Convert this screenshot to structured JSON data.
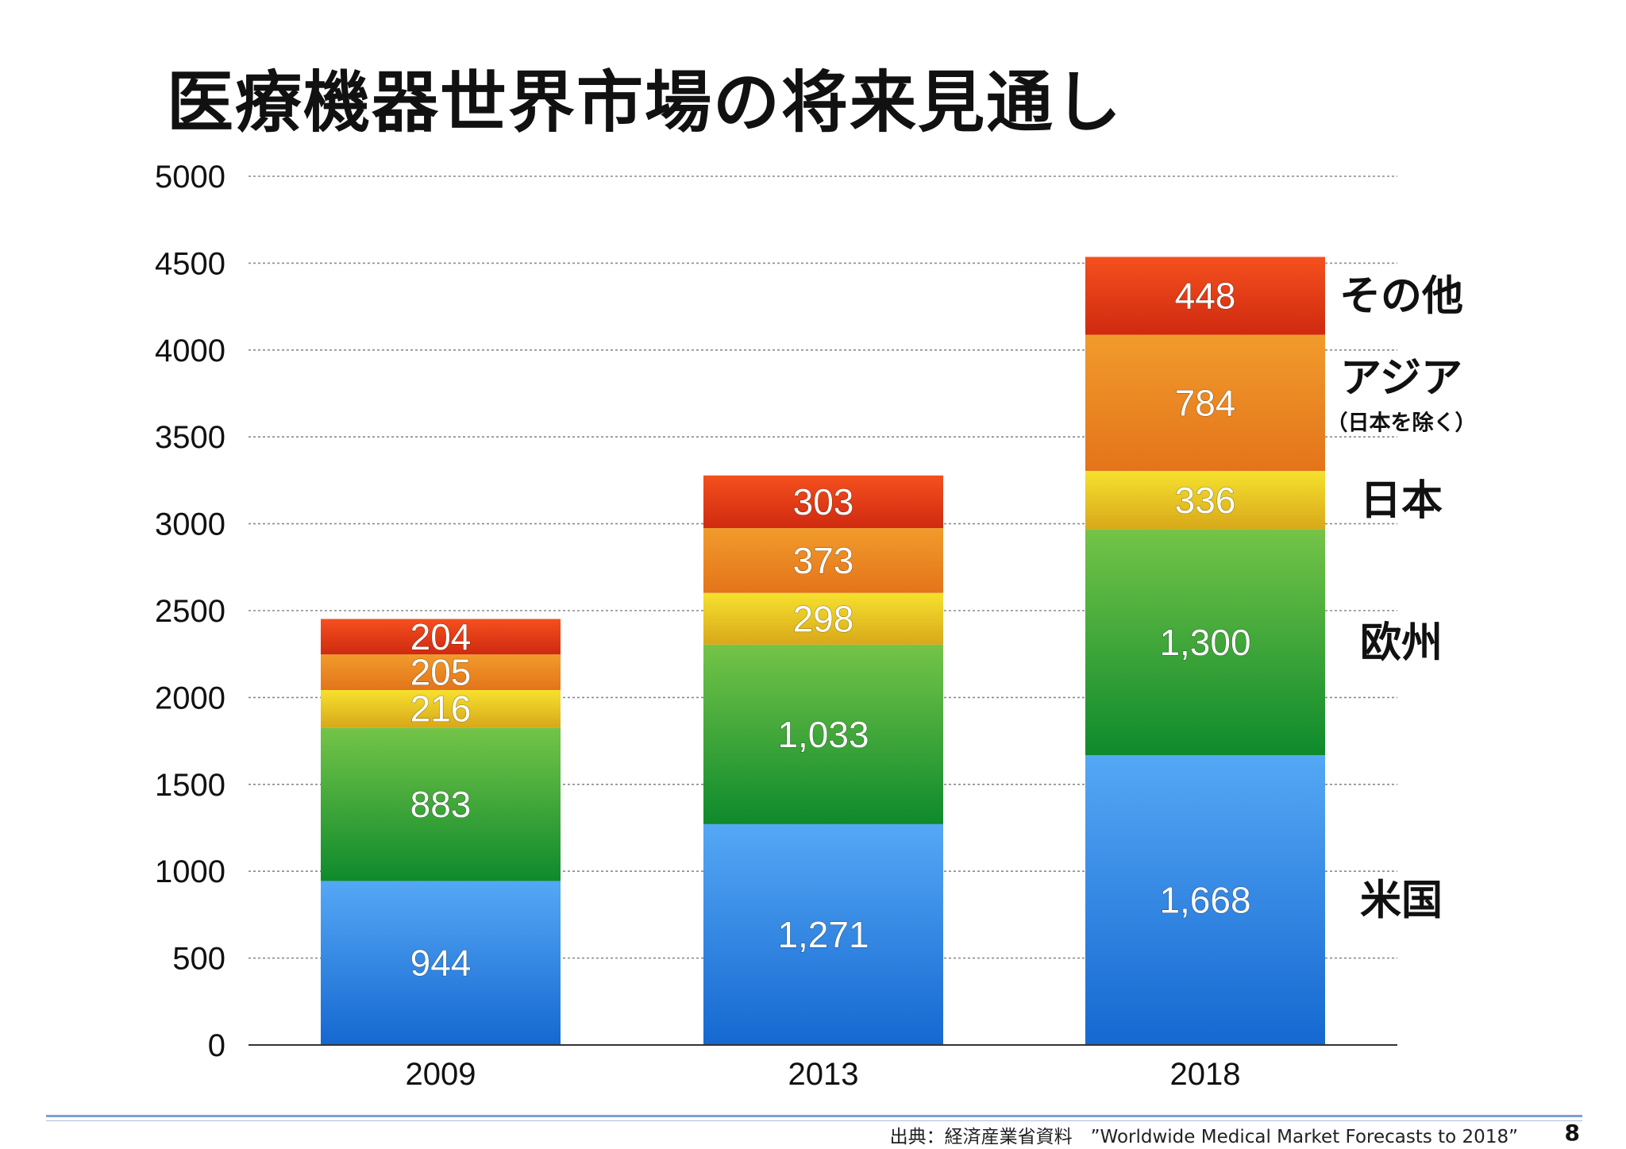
{
  "title": "医療機器世界市場の将来見通し",
  "chart_data": {
    "type": "bar",
    "stacked": true,
    "categories": [
      "2009",
      "2013",
      "2018"
    ],
    "series": [
      {
        "name": "米国",
        "values": [
          944,
          1271,
          1668
        ],
        "labels": [
          "944",
          "1,271",
          "1,668"
        ],
        "color_top": "#55a8f5",
        "color_bottom": "#1568d0"
      },
      {
        "name": "欧州",
        "values": [
          883,
          1033,
          1300
        ],
        "labels": [
          "883",
          "1,033",
          "1,300"
        ],
        "color_top": "#74c448",
        "color_bottom": "#0e8a2c"
      },
      {
        "name": "日本",
        "values": [
          216,
          298,
          336
        ],
        "labels": [
          "216",
          "298",
          "336"
        ],
        "color_top": "#f6e12e",
        "color_bottom": "#d8a81a"
      },
      {
        "name": "アジア",
        "note": "（日本を除く）",
        "values": [
          205,
          373,
          784
        ],
        "labels": [
          "205",
          "373",
          "784"
        ],
        "color_top": "#f19b2c",
        "color_bottom": "#e4741a"
      },
      {
        "name": "その他",
        "values": [
          204,
          303,
          448
        ],
        "labels": [
          "204",
          "303",
          "448"
        ],
        "color_top": "#f5501e",
        "color_bottom": "#cf2a10"
      }
    ],
    "ylim": [
      0,
      5000
    ],
    "yticks": [
      "0",
      "500",
      "1000",
      "1500",
      "2000",
      "2500",
      "3000",
      "3500",
      "4000",
      "4500",
      "5000"
    ],
    "grid": true,
    "legend": "right, aligned with the segments of the 2018 bar"
  },
  "footer": {
    "source": "出典：経済産業省資料　”Worldwide Medical Market Forecasts to 2018”",
    "page": "8"
  }
}
